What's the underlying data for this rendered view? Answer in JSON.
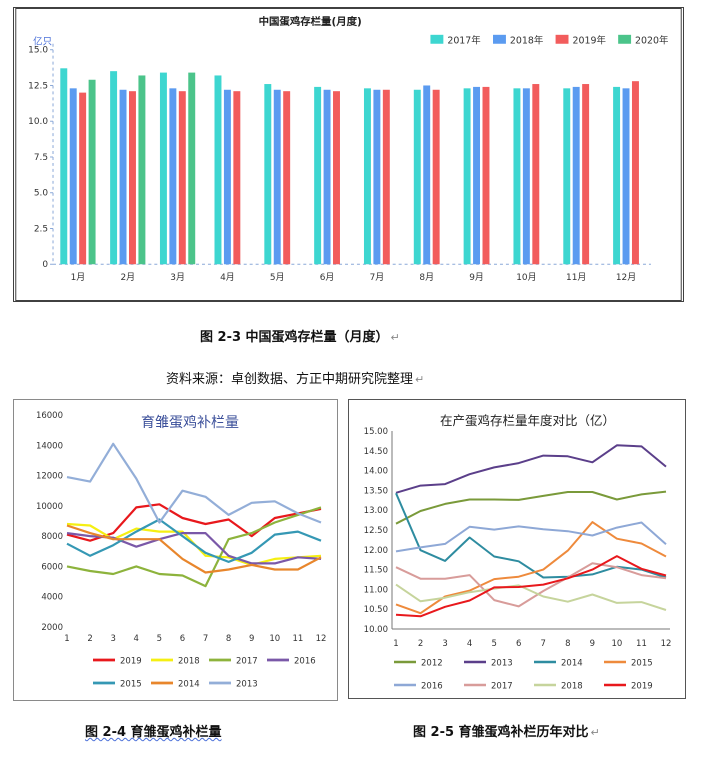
{
  "captions": {
    "fig1": "图 2-3  中国蛋鸡存栏量（月度）",
    "source": "资料来源：卓创数据、方正中期研究院整理",
    "fig2": "图 2-4  育雏蛋鸡补栏量",
    "fig3": "图 2-5  育雏蛋鸡补栏历年对比",
    "return_mark": "↵"
  },
  "chart_data": [
    {
      "type": "bar",
      "title": "中国蛋鸡存栏量(月度)",
      "unit_label": "亿只",
      "categories": [
        "1月",
        "2月",
        "3月",
        "4月",
        "5月",
        "6月",
        "7月",
        "8月",
        "9月",
        "10月",
        "11月",
        "12月"
      ],
      "yticks": [
        "0",
        "2.5",
        "5.0",
        "7.5",
        "10.0",
        "12.5",
        "15.0"
      ],
      "ylim": [
        0,
        15
      ],
      "legend_position": "top-right",
      "grid": false,
      "series": [
        {
          "name": "2017年",
          "color": "#3dd6d0",
          "values": [
            13.7,
            13.5,
            13.4,
            13.2,
            12.6,
            12.4,
            12.3,
            12.2,
            12.3,
            12.3,
            12.3,
            12.4
          ]
        },
        {
          "name": "2018年",
          "color": "#5b9bf0",
          "values": [
            12.3,
            12.2,
            12.3,
            12.2,
            12.2,
            12.2,
            12.2,
            12.5,
            12.4,
            12.3,
            12.4,
            12.3
          ]
        },
        {
          "name": "2019年",
          "color": "#f25c5c",
          "values": [
            12.0,
            12.1,
            12.1,
            12.1,
            12.1,
            12.1,
            12.2,
            12.2,
            12.4,
            12.6,
            12.6,
            12.8
          ]
        },
        {
          "name": "2020年",
          "color": "#4bc48a",
          "values": [
            12.9,
            13.2,
            13.4,
            null,
            null,
            null,
            null,
            null,
            null,
            null,
            null,
            null
          ]
        }
      ]
    },
    {
      "type": "line",
      "title": "育雏蛋鸡补栏量",
      "x": [
        "1",
        "2",
        "3",
        "4",
        "5",
        "6",
        "7",
        "8",
        "9",
        "10",
        "11",
        "12"
      ],
      "yticks": [
        "2000",
        "4000",
        "6000",
        "8000",
        "10000",
        "12000",
        "14000",
        "16000"
      ],
      "ylim": [
        2000,
        16000
      ],
      "legend_position": "bottom",
      "grid": false,
      "series": [
        {
          "name": "2019",
          "color": "#e8181c",
          "values": [
            8100,
            7700,
            8200,
            9900,
            10100,
            9200,
            8800,
            9100,
            8000,
            9200,
            9500,
            9800
          ]
        },
        {
          "name": "2018",
          "color": "#f5ef12",
          "values": [
            8800,
            8700,
            7800,
            8500,
            8300,
            8300,
            6700,
            6600,
            6100,
            6500,
            6600,
            6700
          ]
        },
        {
          "name": "2017",
          "color": "#8db33c",
          "values": [
            6000,
            5700,
            5500,
            6000,
            5500,
            5400,
            4700,
            7800,
            8200,
            8900,
            9400,
            9900
          ]
        },
        {
          "name": "2016",
          "color": "#7a58a8",
          "values": [
            8200,
            8000,
            7900,
            7300,
            7800,
            8200,
            8200,
            6700,
            6200,
            6200,
            6600,
            6500
          ]
        },
        {
          "name": "2015",
          "color": "#3598b4",
          "values": [
            7500,
            6700,
            7400,
            8300,
            9100,
            8000,
            6900,
            6300,
            6900,
            8100,
            8300,
            7700
          ]
        },
        {
          "name": "2014",
          "color": "#e8862c",
          "values": [
            8700,
            8200,
            7800,
            7800,
            7800,
            6500,
            5600,
            5800,
            6100,
            5800,
            5800,
            6600
          ]
        },
        {
          "name": "2013",
          "color": "#93aed8",
          "values": [
            11900,
            11600,
            14100,
            11800,
            8900,
            11000,
            10600,
            9400,
            10200,
            10300,
            9500,
            8900
          ]
        }
      ]
    },
    {
      "type": "line",
      "title": "在产蛋鸡存栏量年度对比（亿）",
      "x": [
        "1",
        "2",
        "3",
        "4",
        "5",
        "6",
        "7",
        "8",
        "9",
        "10",
        "11",
        "12"
      ],
      "yticks": [
        "10.00",
        "10.50",
        "11.00",
        "11.50",
        "12.00",
        "12.50",
        "13.00",
        "13.50",
        "14.00",
        "14.50",
        "15.00"
      ],
      "ylim": [
        10,
        15
      ],
      "legend_position": "bottom",
      "grid": false,
      "series": [
        {
          "name": "2012",
          "color": "#7a9a3a",
          "values": [
            12.66,
            12.98,
            13.16,
            13.27,
            13.27,
            13.26,
            13.36,
            13.46,
            13.46,
            13.27,
            13.4,
            13.47
          ]
        },
        {
          "name": "2013",
          "color": "#5b3f8a",
          "values": [
            13.44,
            13.62,
            13.66,
            13.91,
            14.08,
            14.19,
            14.38,
            14.36,
            14.21,
            14.64,
            14.61,
            14.1
          ]
        },
        {
          "name": "2014",
          "color": "#2e8ca0",
          "values": [
            13.43,
            11.99,
            11.72,
            12.31,
            11.83,
            11.71,
            11.3,
            11.32,
            11.38,
            11.57,
            11.5,
            11.3
          ]
        },
        {
          "name": "2015",
          "color": "#ee8a3c",
          "values": [
            10.62,
            10.4,
            10.82,
            10.97,
            11.26,
            11.32,
            11.5,
            11.98,
            12.7,
            12.28,
            12.16,
            11.83
          ]
        },
        {
          "name": "2016",
          "color": "#8ea8d6",
          "values": [
            11.96,
            12.06,
            12.15,
            12.58,
            12.51,
            12.59,
            12.52,
            12.47,
            12.36,
            12.56,
            12.69,
            12.14
          ]
        },
        {
          "name": "2017",
          "color": "#d89c9a",
          "values": [
            11.56,
            11.27,
            11.27,
            11.36,
            10.73,
            10.57,
            10.96,
            11.3,
            11.66,
            11.56,
            11.36,
            11.28
          ]
        },
        {
          "name": "2018",
          "color": "#c6d49c",
          "values": [
            11.12,
            10.7,
            10.79,
            10.93,
            11.02,
            11.1,
            10.82,
            10.69,
            10.87,
            10.66,
            10.68,
            10.48
          ]
        },
        {
          "name": "2019",
          "color": "#e8181c",
          "values": [
            10.36,
            10.32,
            10.56,
            10.72,
            11.05,
            11.06,
            11.12,
            11.28,
            11.5,
            11.84,
            11.52,
            11.35
          ]
        }
      ]
    }
  ]
}
